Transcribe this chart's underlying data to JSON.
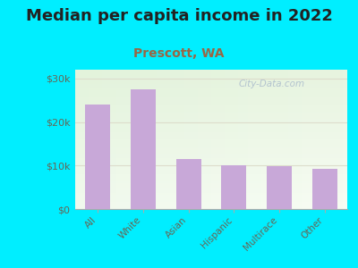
{
  "title": "Median per capita income in 2022",
  "subtitle": "Prescott, WA",
  "categories": [
    "All",
    "White",
    "Asian",
    "Hispanic",
    "Multirace",
    "Other"
  ],
  "values": [
    24000,
    27500,
    11500,
    10000,
    9800,
    9200
  ],
  "bar_color": "#c8a8d8",
  "title_fontsize": 13,
  "subtitle_fontsize": 10,
  "subtitle_color": "#996644",
  "title_color": "#222222",
  "tick_color": "#666655",
  "ylim": [
    0,
    32000
  ],
  "yticks": [
    0,
    10000,
    20000,
    30000
  ],
  "ytick_labels": [
    "$0",
    "$10k",
    "$20k",
    "$30k"
  ],
  "bg_outer": "#00eeff",
  "watermark": "City-Data.com",
  "watermark_color": "#aabbcc",
  "grid_color": "#ddddcc"
}
